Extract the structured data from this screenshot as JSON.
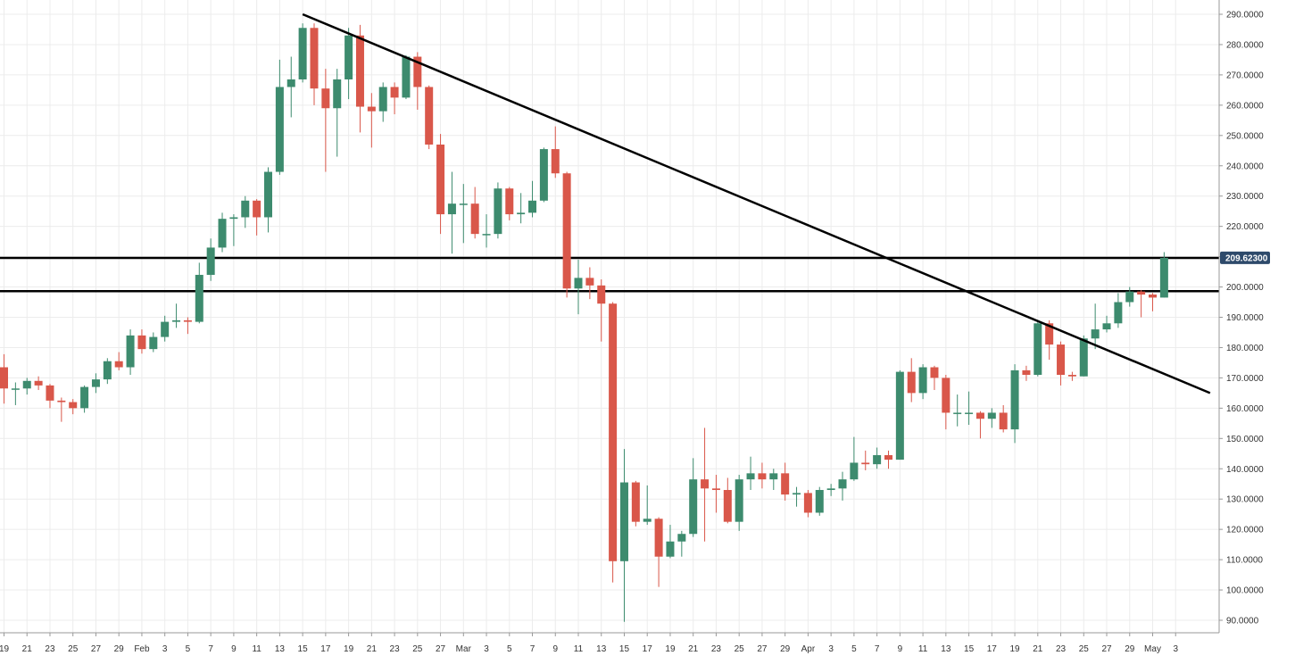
{
  "chart_data": {
    "type": "candlestick",
    "title": "",
    "xlabel": "",
    "ylabel": "",
    "ylim": [
      86,
      292
    ],
    "y_ticks": [
      "290.0000",
      "280.0000",
      "270.0000",
      "260.0000",
      "250.0000",
      "240.0000",
      "230.0000",
      "220.0000",
      "210.0000",
      "200.0000",
      "190.0000",
      "180.0000",
      "170.0000",
      "160.0000",
      "150.0000",
      "140.0000",
      "130.0000",
      "120.0000",
      "110.0000",
      "100.0000",
      "90.0000"
    ],
    "x_ticks": [
      "19",
      "21",
      "23",
      "25",
      "27",
      "29",
      "Feb",
      "3",
      "5",
      "7",
      "9",
      "11",
      "13",
      "15",
      "17",
      "19",
      "21",
      "23",
      "25",
      "27",
      "Mar",
      "3",
      "5",
      "7",
      "9",
      "11",
      "13",
      "15",
      "17",
      "19",
      "21",
      "23",
      "25",
      "27",
      "29",
      "Apr",
      "3",
      "5",
      "7",
      "9",
      "11",
      "13",
      "15",
      "17",
      "19",
      "21",
      "23",
      "25",
      "27",
      "29",
      "May",
      "3"
    ],
    "grid": true,
    "colors": {
      "up": "#3d8b6e",
      "down": "#d9574a",
      "line": "#000000",
      "badge": "#2e4a6b",
      "grid": "#ececec"
    },
    "current_price": "209.62300",
    "trendline": {
      "from": [
        "Feb 14",
        290
      ],
      "to": [
        "May 4",
        165
      ]
    },
    "horizontal_levels": [
      209.6,
      198.6
    ],
    "ohlc": [
      {
        "date": "Jan 19",
        "open": 173.5,
        "high": 177.8,
        "low": 161.5,
        "close": 166.5
      },
      {
        "date": "Jan 20",
        "open": 166.5,
        "high": 168.5,
        "low": 161,
        "close": 166.5
      },
      {
        "date": "Jan 21",
        "open": 166.5,
        "high": 170,
        "low": 164.5,
        "close": 169
      },
      {
        "date": "Jan 22",
        "open": 169,
        "high": 170.5,
        "low": 166,
        "close": 167.5
      },
      {
        "date": "Jan 23",
        "open": 167.5,
        "high": 168,
        "low": 160,
        "close": 162.5
      },
      {
        "date": "Jan 24",
        "open": 162.5,
        "high": 163.5,
        "low": 155.5,
        "close": 162
      },
      {
        "date": "Jan 25",
        "open": 162,
        "high": 163,
        "low": 158,
        "close": 160
      },
      {
        "date": "Jan 26",
        "open": 160,
        "high": 167.5,
        "low": 158.5,
        "close": 167
      },
      {
        "date": "Jan 27",
        "open": 167,
        "high": 171.5,
        "low": 165,
        "close": 169.5
      },
      {
        "date": "Jan 28",
        "open": 169.5,
        "high": 176.5,
        "low": 168,
        "close": 175.5
      },
      {
        "date": "Jan 29",
        "open": 175.5,
        "high": 178.5,
        "low": 172.5,
        "close": 173.5
      },
      {
        "date": "Jan 30",
        "open": 173.5,
        "high": 186,
        "low": 171,
        "close": 184
      },
      {
        "date": "Jan 31",
        "open": 184,
        "high": 186,
        "low": 178,
        "close": 179.5
      },
      {
        "date": "Feb 1",
        "open": 179.5,
        "high": 185,
        "low": 178.5,
        "close": 183.5
      },
      {
        "date": "Feb 2",
        "open": 183.5,
        "high": 190.5,
        "low": 182,
        "close": 188.5
      },
      {
        "date": "Feb 3",
        "open": 188.5,
        "high": 194.5,
        "low": 186.5,
        "close": 189
      },
      {
        "date": "Feb 4",
        "open": 189,
        "high": 190,
        "low": 184.5,
        "close": 188.5
      },
      {
        "date": "Feb 5",
        "open": 188.5,
        "high": 208,
        "low": 188,
        "close": 204
      },
      {
        "date": "Feb 6",
        "open": 204,
        "high": 216,
        "low": 202,
        "close": 213
      },
      {
        "date": "Feb 7",
        "open": 213,
        "high": 224.5,
        "low": 211.5,
        "close": 222.5
      },
      {
        "date": "Feb 8",
        "open": 222.5,
        "high": 224,
        "low": 213.5,
        "close": 223
      },
      {
        "date": "Feb 9",
        "open": 223,
        "high": 230,
        "low": 219.5,
        "close": 228.5
      },
      {
        "date": "Feb 10",
        "open": 228.5,
        "high": 229,
        "low": 217,
        "close": 223
      },
      {
        "date": "Feb 11",
        "open": 223,
        "high": 239.5,
        "low": 218,
        "close": 238
      },
      {
        "date": "Feb 12",
        "open": 238,
        "high": 275,
        "low": 237,
        "close": 266
      },
      {
        "date": "Feb 13",
        "open": 266,
        "high": 276,
        "low": 256,
        "close": 268.5
      },
      {
        "date": "Feb 14",
        "open": 268.5,
        "high": 287,
        "low": 267.5,
        "close": 285.5
      },
      {
        "date": "Feb 15",
        "open": 285.5,
        "high": 287,
        "low": 260,
        "close": 265.5
      },
      {
        "date": "Feb 16",
        "open": 265.5,
        "high": 272,
        "low": 238,
        "close": 259
      },
      {
        "date": "Feb 17",
        "open": 259,
        "high": 272,
        "low": 243,
        "close": 268.5
      },
      {
        "date": "Feb 18",
        "open": 268.5,
        "high": 285.5,
        "low": 262,
        "close": 283
      },
      {
        "date": "Feb 19",
        "open": 283,
        "high": 286.5,
        "low": 251,
        "close": 259.5
      },
      {
        "date": "Feb 20",
        "open": 259.5,
        "high": 264,
        "low": 246,
        "close": 258
      },
      {
        "date": "Feb 21",
        "open": 258,
        "high": 267.5,
        "low": 254.5,
        "close": 266
      },
      {
        "date": "Feb 22",
        "open": 266,
        "high": 267.5,
        "low": 257,
        "close": 262.5
      },
      {
        "date": "Feb 23",
        "open": 262.5,
        "high": 276.5,
        "low": 262,
        "close": 276
      },
      {
        "date": "Feb 24",
        "open": 276,
        "high": 277.5,
        "low": 258.5,
        "close": 266
      },
      {
        "date": "Feb 25",
        "open": 266,
        "high": 266.5,
        "low": 245.5,
        "close": 247
      },
      {
        "date": "Feb 26",
        "open": 247,
        "high": 250.5,
        "low": 217.5,
        "close": 224
      },
      {
        "date": "Feb 27",
        "open": 224,
        "high": 238,
        "low": 211,
        "close": 227.5
      },
      {
        "date": "Feb 28",
        "open": 227.5,
        "high": 234,
        "low": 214.5,
        "close": 227.5
      },
      {
        "date": "Mar 1",
        "open": 227.5,
        "high": 233,
        "low": 216,
        "close": 217.5
      },
      {
        "date": "Mar 2",
        "open": 217.5,
        "high": 224,
        "low": 213,
        "close": 217.5
      },
      {
        "date": "Mar 3",
        "open": 217.5,
        "high": 234.5,
        "low": 216,
        "close": 232.5
      },
      {
        "date": "Mar 4",
        "open": 232.5,
        "high": 233,
        "low": 222,
        "close": 224
      },
      {
        "date": "Mar 5",
        "open": 224,
        "high": 231,
        "low": 221,
        "close": 224.5
      },
      {
        "date": "Mar 6",
        "open": 224.5,
        "high": 235,
        "low": 223,
        "close": 228.5
      },
      {
        "date": "Mar 7",
        "open": 228.5,
        "high": 246,
        "low": 228,
        "close": 245.5
      },
      {
        "date": "Mar 8",
        "open": 245.5,
        "high": 253,
        "low": 236,
        "close": 237.5
      },
      {
        "date": "Mar 9",
        "open": 237.5,
        "high": 238,
        "low": 196.5,
        "close": 199.5
      },
      {
        "date": "Mar 10",
        "open": 199.5,
        "high": 209,
        "low": 191,
        "close": 203
      },
      {
        "date": "Mar 11",
        "open": 203,
        "high": 206.5,
        "low": 196,
        "close": 200.5
      },
      {
        "date": "Mar 12",
        "open": 200.5,
        "high": 202.5,
        "low": 182,
        "close": 194.5
      },
      {
        "date": "Mar 13",
        "open": 194.5,
        "high": 195,
        "low": 102.5,
        "close": 109.5
      },
      {
        "date": "Mar 14",
        "open": 109.5,
        "high": 146.5,
        "low": 89.5,
        "close": 135.5
      },
      {
        "date": "Mar 15",
        "open": 135.5,
        "high": 136,
        "low": 121,
        "close": 122.5
      },
      {
        "date": "Mar 16",
        "open": 122.5,
        "high": 134.5,
        "low": 121.5,
        "close": 123.5
      },
      {
        "date": "Mar 17",
        "open": 123.5,
        "high": 124,
        "low": 101,
        "close": 111
      },
      {
        "date": "Mar 18",
        "open": 111,
        "high": 121.5,
        "low": 110.5,
        "close": 116
      },
      {
        "date": "Mar 19",
        "open": 116,
        "high": 119.5,
        "low": 111,
        "close": 118.5
      },
      {
        "date": "Mar 20",
        "open": 118.5,
        "high": 143.5,
        "low": 117.5,
        "close": 136.5
      },
      {
        "date": "Mar 21",
        "open": 136.5,
        "high": 153.5,
        "low": 116,
        "close": 133.5
      },
      {
        "date": "Mar 22",
        "open": 133.5,
        "high": 138,
        "low": 125.5,
        "close": 133
      },
      {
        "date": "Mar 23",
        "open": 133,
        "high": 137,
        "low": 122,
        "close": 122.5
      },
      {
        "date": "Mar 24",
        "open": 122.5,
        "high": 138,
        "low": 119.5,
        "close": 136.5
      },
      {
        "date": "Mar 25",
        "open": 136.5,
        "high": 144,
        "low": 133,
        "close": 138.5
      },
      {
        "date": "Mar 26",
        "open": 138.5,
        "high": 142,
        "low": 133.5,
        "close": 136.5
      },
      {
        "date": "Mar 27",
        "open": 136.5,
        "high": 140,
        "low": 133,
        "close": 138.5
      },
      {
        "date": "Mar 28",
        "open": 138.5,
        "high": 142,
        "low": 129.5,
        "close": 131.5
      },
      {
        "date": "Mar 29",
        "open": 131.5,
        "high": 134,
        "low": 127.5,
        "close": 132
      },
      {
        "date": "Mar 30",
        "open": 132,
        "high": 133,
        "low": 124,
        "close": 125.5
      },
      {
        "date": "Mar 31",
        "open": 125.5,
        "high": 134,
        "low": 124.5,
        "close": 133
      },
      {
        "date": "Apr 1",
        "open": 133,
        "high": 135,
        "low": 131,
        "close": 133.5
      },
      {
        "date": "Apr 2",
        "open": 133.5,
        "high": 139,
        "low": 129.5,
        "close": 136.5
      },
      {
        "date": "Apr 3",
        "open": 136.5,
        "high": 150.5,
        "low": 136,
        "close": 142
      },
      {
        "date": "Apr 4",
        "open": 142,
        "high": 146,
        "low": 139.5,
        "close": 141.5
      },
      {
        "date": "Apr 5",
        "open": 141.5,
        "high": 147,
        "low": 140,
        "close": 144.5
      },
      {
        "date": "Apr 6",
        "open": 144.5,
        "high": 146,
        "low": 140,
        "close": 143
      },
      {
        "date": "Apr 7",
        "open": 143,
        "high": 172.5,
        "low": 143,
        "close": 172
      },
      {
        "date": "Apr 8",
        "open": 172,
        "high": 176.5,
        "low": 162,
        "close": 165
      },
      {
        "date": "Apr 9",
        "open": 165,
        "high": 174.5,
        "low": 163,
        "close": 173.5
      },
      {
        "date": "Apr 10",
        "open": 173.5,
        "high": 174,
        "low": 166,
        "close": 170
      },
      {
        "date": "Apr 11",
        "open": 170,
        "high": 171,
        "low": 153,
        "close": 158.5
      },
      {
        "date": "Apr 12",
        "open": 158.5,
        "high": 164.5,
        "low": 154,
        "close": 158.5
      },
      {
        "date": "Apr 13",
        "open": 158.5,
        "high": 165.5,
        "low": 154.5,
        "close": 158.5
      },
      {
        "date": "Apr 14",
        "open": 158.5,
        "high": 159,
        "low": 150,
        "close": 156.5
      },
      {
        "date": "Apr 15",
        "open": 156.5,
        "high": 160,
        "low": 153.5,
        "close": 158.5
      },
      {
        "date": "Apr 16",
        "open": 158.5,
        "high": 161,
        "low": 152,
        "close": 153
      },
      {
        "date": "Apr 17",
        "open": 153,
        "high": 174.5,
        "low": 148.5,
        "close": 172.5
      },
      {
        "date": "Apr 18",
        "open": 172.5,
        "high": 174,
        "low": 169,
        "close": 171
      },
      {
        "date": "Apr 19",
        "open": 171,
        "high": 189,
        "low": 170.5,
        "close": 188
      },
      {
        "date": "Apr 20",
        "open": 188,
        "high": 189,
        "low": 176,
        "close": 181
      },
      {
        "date": "Apr 21",
        "open": 181,
        "high": 182,
        "low": 167.5,
        "close": 171
      },
      {
        "date": "Apr 22",
        "open": 171,
        "high": 172,
        "low": 169,
        "close": 170.5
      },
      {
        "date": "Apr 23",
        "open": 170.5,
        "high": 184,
        "low": 170.5,
        "close": 183
      },
      {
        "date": "Apr 24",
        "open": 183,
        "high": 194.5,
        "low": 179.5,
        "close": 186
      },
      {
        "date": "Apr 25",
        "open": 186,
        "high": 190.5,
        "low": 185,
        "close": 188
      },
      {
        "date": "Apr 26",
        "open": 188,
        "high": 198,
        "low": 186.5,
        "close": 195
      },
      {
        "date": "Apr 27",
        "open": 195,
        "high": 200,
        "low": 193.5,
        "close": 198.5
      },
      {
        "date": "Apr 28",
        "open": 198.5,
        "high": 199,
        "low": 190,
        "close": 197.5
      },
      {
        "date": "Apr 29",
        "open": 197.5,
        "high": 198,
        "low": 192,
        "close": 196.5
      },
      {
        "date": "Apr 30",
        "open": 196.5,
        "high": 211.5,
        "low": 196.5,
        "close": 209.62
      }
    ]
  }
}
